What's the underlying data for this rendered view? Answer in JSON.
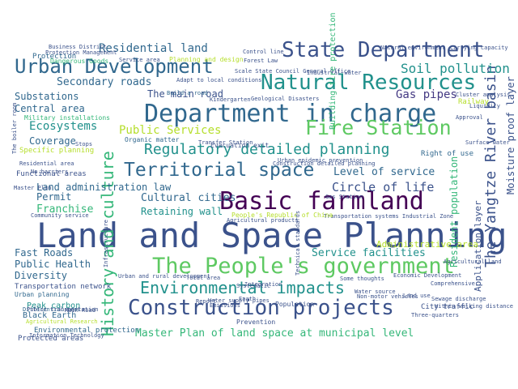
{
  "words": [
    {
      "text": "Land and Space Planning",
      "color": "#3b528b"
    },
    {
      "text": "Department in charge",
      "color": "#31688e"
    },
    {
      "text": "The People's government",
      "color": "#5ec962"
    },
    {
      "text": "Construction projects",
      "color": "#3b528b"
    },
    {
      "text": "Basic farmland",
      "color": "#440154"
    },
    {
      "text": "Natural Resources",
      "color": "#21918c"
    },
    {
      "text": "State Department",
      "color": "#3b528b"
    },
    {
      "text": "Urban Development",
      "color": "#31688e"
    },
    {
      "text": "Territorial space",
      "color": "#31688e"
    },
    {
      "text": "Environmental impacts",
      "color": "#21918c"
    },
    {
      "text": "Fire Station",
      "color": "#5ec962"
    },
    {
      "text": "Regulatory detailed planning",
      "color": "#21918c"
    },
    {
      "text": "History and culture",
      "color": "#35b779"
    },
    {
      "text": "The Yangtze River basin",
      "color": "#3b528b"
    },
    {
      "text": "Master Plan of land space at municipal level",
      "color": "#35b779"
    },
    {
      "text": "Residential land",
      "color": "#31688e"
    },
    {
      "text": "Soil pollution",
      "color": "#21918c"
    },
    {
      "text": "Public Services",
      "color": "#b5de2b"
    },
    {
      "text": "Secondary roads",
      "color": "#31688e"
    },
    {
      "text": "The main road",
      "color": "#3b528b"
    },
    {
      "text": "Gas pipes",
      "color": "#443983"
    },
    {
      "text": "Substations",
      "color": "#31688e"
    },
    {
      "text": "Central area",
      "color": "#31688e"
    },
    {
      "text": "Ecosystems",
      "color": "#21918c"
    },
    {
      "text": "Land administration law",
      "color": "#31688e"
    },
    {
      "text": "Level of service",
      "color": "#31688e"
    },
    {
      "text": "Circle of life",
      "color": "#3b528b"
    },
    {
      "text": "Cultural cities",
      "color": "#31688e"
    },
    {
      "text": "Retaining wall",
      "color": "#21918c"
    },
    {
      "text": "Permit",
      "color": "#31688e"
    },
    {
      "text": "Franchise",
      "color": "#35b779"
    },
    {
      "text": "Fast Roads",
      "color": "#31688e"
    },
    {
      "text": "Public Health",
      "color": "#31688e"
    },
    {
      "text": "Diversity",
      "color": "#31688e"
    },
    {
      "text": "Service facilities",
      "color": "#21918c"
    },
    {
      "text": "Moisture proof layer",
      "color": "#3b528b"
    },
    {
      "text": "Resident population",
      "color": "#35b779"
    },
    {
      "text": "Application layer",
      "color": "#3b528b"
    },
    {
      "text": "Administrative area",
      "color": "#b5de2b"
    },
    {
      "text": "Coverage",
      "color": "#31688e"
    },
    {
      "text": "Protected areas",
      "color": "#3b528b"
    },
    {
      "text": "Black Earth",
      "color": "#31688e"
    },
    {
      "text": "Peak carbon",
      "color": "#21918c"
    },
    {
      "text": "Transportation network",
      "color": "#3b528b"
    },
    {
      "text": "Urban planning",
      "color": "#31688e"
    },
    {
      "text": "Differential rent",
      "color": "#31688e"
    },
    {
      "text": "Environmental protection",
      "color": "#31688e"
    },
    {
      "text": "Military installations",
      "color": "#35b779"
    },
    {
      "text": "Protection",
      "color": "#31688e"
    },
    {
      "text": "Organic matter",
      "color": "#31688e"
    },
    {
      "text": "Evacuation exit",
      "color": "#3b528b"
    },
    {
      "text": "Right of use",
      "color": "#31688e"
    },
    {
      "text": "Functional areas",
      "color": "#3b528b"
    },
    {
      "text": "Specific planning",
      "color": "#b5de2b"
    },
    {
      "text": "Community service",
      "color": "#3b528b"
    },
    {
      "text": "Geological Disasters",
      "color": "#3b528b"
    },
    {
      "text": "Kindergarten",
      "color": "#3b528b"
    },
    {
      "text": "Build a road",
      "color": "#31688e"
    },
    {
      "text": "City traffic",
      "color": "#3b528b"
    },
    {
      "text": "Prevention",
      "color": "#3b528b"
    },
    {
      "text": "Population",
      "color": "#3b528b"
    },
    {
      "text": "Integration",
      "color": "#3b528b"
    },
    {
      "text": "Water supply pipes",
      "color": "#3b528b"
    },
    {
      "text": "Urban and rural development",
      "color": "#3b528b"
    },
    {
      "text": "Total area",
      "color": "#3b528b"
    },
    {
      "text": "Report",
      "color": "#3b528b"
    },
    {
      "text": "Earth",
      "color": "#3b528b"
    },
    {
      "text": "Three-quarters",
      "color": "#3b528b"
    },
    {
      "text": "Economic Development",
      "color": "#3b528b"
    },
    {
      "text": "Comprehensive",
      "color": "#3b528b"
    },
    {
      "text": "Transfer Station",
      "color": "#3b528b"
    },
    {
      "text": "Adapt to local conditions",
      "color": "#3b528b"
    },
    {
      "text": "Control line",
      "color": "#3b528b"
    },
    {
      "text": "Forest Law",
      "color": "#3b528b"
    },
    {
      "text": "Industrial water",
      "color": "#3b528b"
    },
    {
      "text": "Transportation systems Industrial Zone",
      "color": "#3b528b"
    },
    {
      "text": "Urban epidemic prevention",
      "color": "#3b528b"
    },
    {
      "text": "Construction detailed planning",
      "color": "#3b528b"
    },
    {
      "text": "Agricultural products",
      "color": "#3b528b"
    },
    {
      "text": "People's Republic of China",
      "color": "#b5de2b"
    },
    {
      "text": "Surface water",
      "color": "#3b528b"
    },
    {
      "text": "Natural environment",
      "color": "#3b528b"
    },
    {
      "text": "Carrying capacity",
      "color": "#3b528b"
    },
    {
      "text": "Railway",
      "color": "#b5de2b"
    },
    {
      "text": "Cluster analysis",
      "color": "#3b528b"
    },
    {
      "text": "Scale State Council General Office",
      "color": "#3b528b"
    },
    {
      "text": "Business District",
      "color": "#3b528b"
    },
    {
      "text": "Protection Management",
      "color": "#3b528b"
    },
    {
      "text": "Dangerous Goods",
      "color": "#35b779"
    },
    {
      "text": "Service area",
      "color": "#3b528b"
    },
    {
      "text": "Planning and design",
      "color": "#b5de2b"
    },
    {
      "text": "Master Plan",
      "color": "#3b528b"
    },
    {
      "text": "Public transportation",
      "color": "#3b528b"
    },
    {
      "text": "Agricultural Research",
      "color": "#b5de2b"
    },
    {
      "text": "Information Technology",
      "color": "#3b528b"
    },
    {
      "text": "Stops",
      "color": "#3b528b"
    },
    {
      "text": "Residential area",
      "color": "#3b528b"
    },
    {
      "text": "No barriers",
      "color": "#3b528b"
    },
    {
      "text": "Gas Station",
      "color": "#3b528b"
    },
    {
      "text": "Water source",
      "color": "#3b528b"
    },
    {
      "text": "Some thoughts",
      "color": "#3b528b"
    },
    {
      "text": "Non-motor vehicles",
      "color": "#3b528b"
    },
    {
      "text": "Sewage discharge",
      "color": "#3b528b"
    },
    {
      "text": "Within walking distance",
      "color": "#3b528b"
    },
    {
      "text": "Approval",
      "color": "#3b528b"
    },
    {
      "text": "Liquidity",
      "color": "#3b528b"
    },
    {
      "text": "Land use",
      "color": "#3b528b"
    },
    {
      "text": "Emissions",
      "color": "#3b528b"
    },
    {
      "text": "Systematic",
      "color": "#3b528b"
    },
    {
      "text": "Main Road",
      "color": "#3b528b"
    },
    {
      "text": "Building fire protection",
      "color": "#35b779"
    },
    {
      "text": "The boiler room",
      "color": "#3b528b"
    },
    {
      "text": "Technical standards",
      "color": "#3b528b"
    },
    {
      "text": "Agricultural land",
      "color": "#3b528b"
    },
    {
      "text": "Infrastructure",
      "color": "#3b528b"
    }
  ]
}
